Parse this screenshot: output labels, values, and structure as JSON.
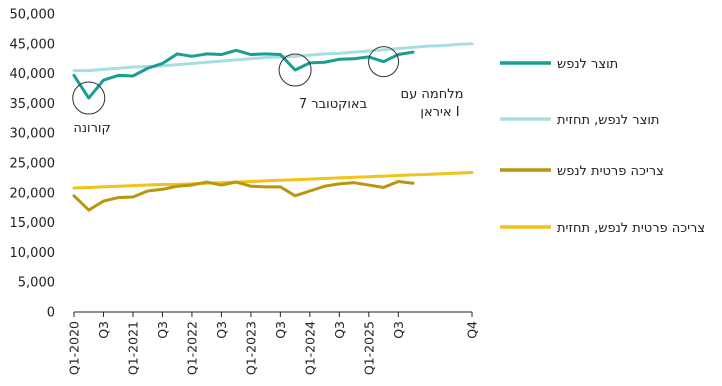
{
  "chart_data": {
    "type": "line",
    "title": "",
    "xlabel": "",
    "ylabel": "",
    "ylim": [
      0,
      50000
    ],
    "yticks": [
      0,
      5000,
      10000,
      15000,
      20000,
      25000,
      30000,
      35000,
      40000,
      45000,
      50000
    ],
    "ytick_labels": [
      "0",
      "5,000",
      "10,000",
      "15,000",
      "20,000",
      "25,000",
      "30,000",
      "35,000",
      "40,000",
      "45,000",
      "50,000"
    ],
    "grid": "none",
    "legend_position": "right",
    "quarters": [
      "Q1-2020",
      "Q2-2020",
      "Q3-2020",
      "Q4-2020",
      "Q1-2021",
      "Q2-2021",
      "Q3-2021",
      "Q4-2021",
      "Q1-2022",
      "Q2-2022",
      "Q3-2022",
      "Q4-2022",
      "Q1-2023",
      "Q2-2023",
      "Q3-2023",
      "Q4-2023",
      "Q1-2024",
      "Q2-2024",
      "Q3-2024",
      "Q4-2024",
      "Q1-2025",
      "Q2-2025",
      "Q3-2025",
      "Q4-2025",
      "Q1-2026",
      "Q2-2026",
      "Q3-2026",
      "Q4-2026"
    ],
    "xtick_labels": [
      {
        "index": 0,
        "label": "Q1-2020"
      },
      {
        "index": 2,
        "label": "Q3"
      },
      {
        "index": 4,
        "label": "Q1-2021"
      },
      {
        "index": 6,
        "label": "Q3"
      },
      {
        "index": 8,
        "label": "Q1-2022"
      },
      {
        "index": 10,
        "label": "Q3"
      },
      {
        "index": 12,
        "label": "Q1-2023"
      },
      {
        "index": 14,
        "label": "Q3"
      },
      {
        "index": 16,
        "label": "Q1-2024"
      },
      {
        "index": 18,
        "label": "Q3"
      },
      {
        "index": 20,
        "label": "Q1-2025"
      },
      {
        "index": 22,
        "label": "Q3"
      },
      {
        "index": 27,
        "label": "Q4"
      }
    ],
    "series": [
      {
        "name": "תוצר לנפש",
        "color": "#1a9e94",
        "width": 3,
        "values": [
          39700,
          35900,
          38900,
          39700,
          39600,
          40900,
          41700,
          43300,
          42900,
          43300,
          43200,
          43900,
          43200,
          43300,
          43200,
          40600,
          41800,
          41900,
          42400,
          42500,
          42800,
          42000,
          43200,
          43600,
          null,
          null,
          null,
          null
        ]
      },
      {
        "name": "תוצר לנפש, תחזית",
        "color": "#a8dede",
        "width": 3,
        "values": [
          40500,
          40500,
          40700,
          40900,
          41100,
          41200,
          41300,
          41500,
          41700,
          41900,
          42100,
          42300,
          42500,
          42700,
          42800,
          42900,
          43100,
          43300,
          43400,
          43600,
          43800,
          44000,
          44200,
          44400,
          44600,
          44700,
          44900,
          45000
        ]
      },
      {
        "name": "צריכה פרטית לנפש",
        "color": "#b8960f",
        "width": 3,
        "values": [
          19500,
          17100,
          18600,
          19200,
          19300,
          20300,
          20600,
          21100,
          21300,
          21800,
          21300,
          21800,
          21100,
          21000,
          21000,
          19500,
          20300,
          21100,
          21500,
          21700,
          21300,
          20900,
          21900,
          21600,
          null,
          null,
          null,
          null
        ]
      },
      {
        "name": "צריכה פרטית לנפש, תחזית",
        "color": "#f2c21b",
        "width": 3,
        "values": [
          20800,
          20900,
          21000,
          21100,
          21200,
          21300,
          21400,
          21400,
          21500,
          21600,
          21700,
          21800,
          21900,
          22000,
          22100,
          22200,
          22300,
          22400,
          22500,
          22600,
          22700,
          22800,
          22900,
          23000,
          23100,
          23200,
          23300,
          23400
        ]
      }
    ],
    "annotations": [
      {
        "label": "קורונה",
        "index": 1,
        "value": 35900
      },
      {
        "label": "7 באוקטובר",
        "index": 15,
        "value": 40600
      },
      {
        "label_line1": "מלחמה עם",
        "label_line2": "איראן I",
        "index": 21,
        "value": 42000
      }
    ]
  }
}
